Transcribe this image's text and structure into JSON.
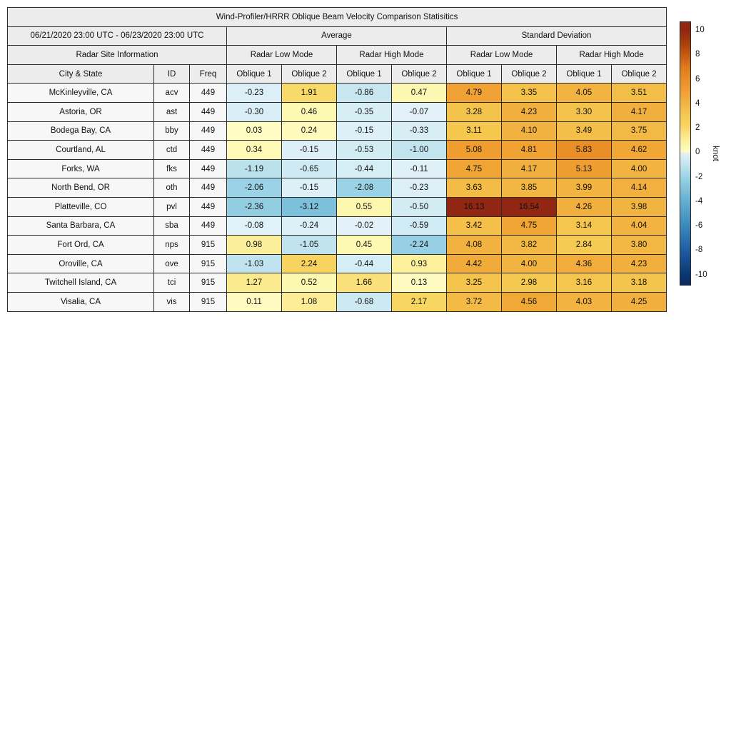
{
  "table": {
    "title": "Wind-Profiler/HRRR Oblique Beam Velocity Comparison Statisitics",
    "date_range": "06/21/2020 23:00 UTC - 06/23/2020 23:00 UTC",
    "avg_label": "Average",
    "std_label": "Standard Deviation",
    "site_info_label": "Radar Site Information",
    "mode_headers": [
      "Radar Low Mode",
      "Radar High Mode",
      "Radar Low Mode",
      "Radar High Mode"
    ],
    "columns": [
      "City & State",
      "ID",
      "Freq",
      "Oblique 1",
      "Oblique 2",
      "Oblique 1",
      "Oblique 2",
      "Oblique 1",
      "Oblique 2",
      "Oblique 1",
      "Oblique 2"
    ]
  },
  "colorbar": {
    "ticks": [
      10,
      8,
      6,
      4,
      2,
      0,
      -2,
      -4,
      -6,
      -8,
      -10
    ],
    "vmin": -10,
    "vmax": 10
  },
  "colormap": {
    "negative": [
      [
        -10.9,
        "#072C5F"
      ],
      [
        -10,
        "#0B3873"
      ],
      [
        -8,
        "#1E5FA5"
      ],
      [
        -6,
        "#3C8ABE"
      ],
      [
        -4,
        "#64B0D1"
      ],
      [
        -3,
        "#7FC2DC"
      ],
      [
        -2,
        "#9ED3E6"
      ],
      [
        -1,
        "#C2E4EF"
      ],
      [
        -0.5,
        "#D3ECF4"
      ],
      [
        0,
        "#E3F2F8"
      ]
    ],
    "positive": [
      [
        0,
        "#FFFCC5"
      ],
      [
        0.5,
        "#FDF8B0"
      ],
      [
        1,
        "#FCEF9A"
      ],
      [
        1.5,
        "#FAE481"
      ],
      [
        2,
        "#F8D865"
      ],
      [
        3,
        "#F5C94F"
      ],
      [
        4,
        "#F2B441"
      ],
      [
        5,
        "#EF9F30"
      ],
      [
        6,
        "#E98C26"
      ],
      [
        7,
        "#DE7A1C"
      ],
      [
        8,
        "#C65912"
      ],
      [
        9,
        "#A93E0C"
      ],
      [
        10,
        "#912713"
      ],
      [
        10.7,
        "#912713"
      ]
    ]
  },
  "chart_data": {
    "type": "heatmap",
    "title": "Wind-Profiler/HRRR Oblique Beam Velocity Comparison Statisitics",
    "period": "06/21/2020 23:00 UTC - 06/23/2020 23:00 UTC",
    "unit": "knot",
    "colorbar_range": [
      -10,
      10
    ],
    "colorbar_ticks": [
      10,
      8,
      6,
      4,
      2,
      0,
      -2,
      -4,
      -6,
      -8,
      -10
    ],
    "column_groups": [
      {
        "group": "Average",
        "mode": "Radar Low Mode",
        "cols": [
          "Oblique 1",
          "Oblique 2"
        ]
      },
      {
        "group": "Average",
        "mode": "Radar High Mode",
        "cols": [
          "Oblique 1",
          "Oblique 2"
        ]
      },
      {
        "group": "Standard Deviation",
        "mode": "Radar Low Mode",
        "cols": [
          "Oblique 1",
          "Oblique 2"
        ]
      },
      {
        "group": "Standard Deviation",
        "mode": "Radar High Mode",
        "cols": [
          "Oblique 1",
          "Oblique 2"
        ]
      }
    ],
    "rows": [
      {
        "city": "McKinleyville, CA",
        "id": "acv",
        "freq": "449",
        "values": [
          -0.23,
          1.91,
          -0.86,
          0.47,
          4.79,
          3.35,
          4.05,
          3.51
        ]
      },
      {
        "city": "Astoria, OR",
        "id": "ast",
        "freq": "449",
        "values": [
          -0.3,
          0.46,
          -0.35,
          -0.07,
          3.28,
          4.23,
          3.3,
          4.17
        ]
      },
      {
        "city": "Bodega Bay, CA",
        "id": "bby",
        "freq": "449",
        "values": [
          0.03,
          0.24,
          -0.15,
          -0.33,
          3.11,
          4.1,
          3.49,
          3.75
        ]
      },
      {
        "city": "Courtland, AL",
        "id": "ctd",
        "freq": "449",
        "values": [
          0.34,
          -0.15,
          -0.53,
          -1.0,
          5.08,
          4.81,
          5.83,
          4.62
        ]
      },
      {
        "city": "Forks, WA",
        "id": "fks",
        "freq": "449",
        "values": [
          -1.19,
          -0.65,
          -0.44,
          -0.11,
          4.75,
          4.17,
          5.13,
          4.0
        ]
      },
      {
        "city": "North Bend, OR",
        "id": "oth",
        "freq": "449",
        "values": [
          -2.06,
          -0.15,
          -2.08,
          -0.23,
          3.63,
          3.85,
          3.99,
          4.14
        ]
      },
      {
        "city": "Platteville, CO",
        "id": "pvl",
        "freq": "449",
        "values": [
          -2.36,
          -3.12,
          0.55,
          -0.5,
          16.13,
          16.54,
          4.26,
          3.98
        ]
      },
      {
        "city": "Santa Barbara, CA",
        "id": "sba",
        "freq": "449",
        "values": [
          -0.08,
          -0.24,
          -0.02,
          -0.59,
          3.42,
          4.75,
          3.14,
          4.04
        ]
      },
      {
        "city": "Fort Ord, CA",
        "id": "nps",
        "freq": "915",
        "values": [
          0.98,
          -1.05,
          0.45,
          -2.24,
          4.08,
          3.82,
          2.84,
          3.8
        ]
      },
      {
        "city": "Oroville, CA",
        "id": "ove",
        "freq": "915",
        "values": [
          -1.03,
          2.24,
          -0.44,
          0.93,
          4.42,
          4.0,
          4.36,
          4.23
        ]
      },
      {
        "city": "Twitchell Island, CA",
        "id": "tci",
        "freq": "915",
        "values": [
          1.27,
          0.52,
          1.66,
          0.13,
          3.25,
          2.98,
          3.16,
          3.18
        ]
      },
      {
        "city": "Visalia, CA",
        "id": "vis",
        "freq": "915",
        "values": [
          0.11,
          1.08,
          -0.68,
          2.17,
          3.72,
          4.56,
          4.03,
          4.25
        ]
      }
    ]
  }
}
